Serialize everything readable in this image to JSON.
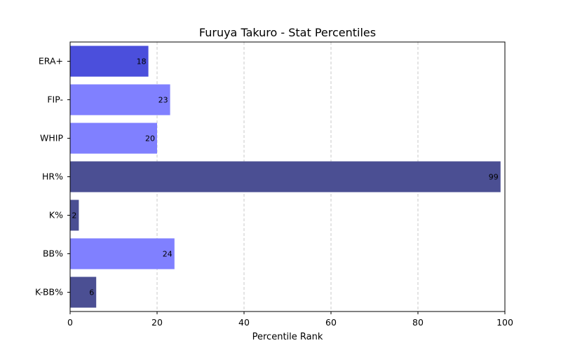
{
  "chart_data": {
    "type": "bar",
    "orientation": "horizontal",
    "title": "Furuya Takuro - Stat Percentiles",
    "xlabel": "Percentile Rank",
    "ylabel": "",
    "xlim": [
      0,
      100
    ],
    "xticks": [
      0,
      20,
      40,
      60,
      80,
      100
    ],
    "grid": "x-dashed",
    "categories": [
      "ERA+",
      "FIP-",
      "WHIP",
      "HR%",
      "K%",
      "BB%",
      "K-BB%"
    ],
    "values": [
      18,
      23,
      20,
      99,
      2,
      24,
      6
    ],
    "colors": [
      "#4b4fdc",
      "#8080ff",
      "#8080ff",
      "#4b4f93",
      "#4b4f93",
      "#8080ff",
      "#4b4f93"
    ]
  }
}
